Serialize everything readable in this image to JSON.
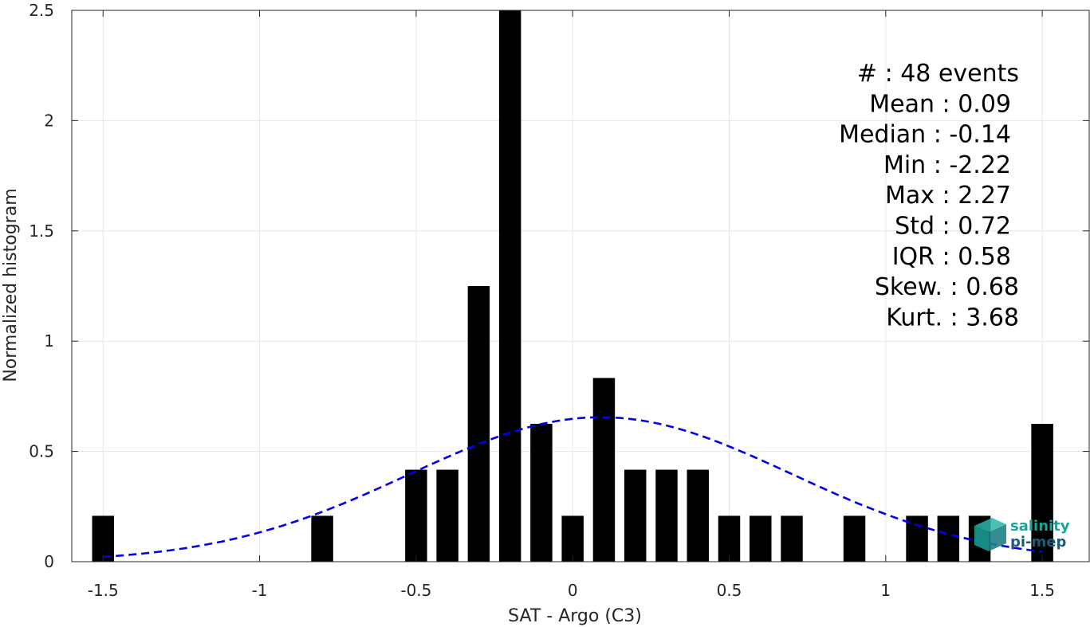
{
  "chart_data": {
    "type": "bar",
    "xlabel": "SAT - Argo (C3)",
    "ylabel": "Normalized histogram",
    "xlim": [
      -1.6,
      1.65
    ],
    "ylim": [
      0,
      2.5
    ],
    "grid": true,
    "xticks": [
      -1.5,
      -1,
      -0.5,
      0,
      0.5,
      1,
      1.5
    ],
    "xtick_labels": [
      "-1.5",
      "-1",
      "-0.5",
      "0",
      "0.5",
      "1",
      "1.5"
    ],
    "yticks": [
      0,
      0.5,
      1,
      1.5,
      2,
      2.5
    ],
    "ytick_labels": [
      "0",
      "0.5",
      "1",
      "1.5",
      "2",
      "2.5"
    ],
    "bar_width": 0.07,
    "bars": [
      {
        "x": -1.5,
        "y": 0.208
      },
      {
        "x": -0.8,
        "y": 0.208
      },
      {
        "x": -0.5,
        "y": 0.417
      },
      {
        "x": -0.4,
        "y": 0.417
      },
      {
        "x": -0.3,
        "y": 1.25
      },
      {
        "x": -0.2,
        "y": 2.5
      },
      {
        "x": -0.1,
        "y": 0.625
      },
      {
        "x": 0.0,
        "y": 0.208
      },
      {
        "x": 0.1,
        "y": 0.833
      },
      {
        "x": 0.2,
        "y": 0.417
      },
      {
        "x": 0.3,
        "y": 0.417
      },
      {
        "x": 0.4,
        "y": 0.417
      },
      {
        "x": 0.5,
        "y": 0.208
      },
      {
        "x": 0.6,
        "y": 0.208
      },
      {
        "x": 0.7,
        "y": 0.208
      },
      {
        "x": 0.9,
        "y": 0.208
      },
      {
        "x": 1.1,
        "y": 0.208
      },
      {
        "x": 1.2,
        "y": 0.208
      },
      {
        "x": 1.3,
        "y": 0.208
      },
      {
        "x": 1.5,
        "y": 0.625
      }
    ],
    "fit_curve": {
      "style": "dashed",
      "color": "#0000ee",
      "x_range": [
        -1.5,
        1.5
      ],
      "peak": 0.655,
      "mean": 0.09,
      "std": 0.61
    },
    "stats": [
      "#  : 48 events",
      "Mean : 0.09",
      "Median : -0.14",
      "Min : -2.22",
      "Max : 2.27",
      "Std : 0.72",
      "IQR : 0.58",
      "Skew. : 0.68",
      "Kurt. : 3.68"
    ],
    "colors": {
      "bars": "#000000",
      "grid": "#e6e6e6",
      "axes": "#262626",
      "logo_teal": "#1aa39a",
      "logo_dark": "#1a5d7a"
    }
  },
  "logo": {
    "line1": "salinity",
    "line2": "pi-mep"
  }
}
